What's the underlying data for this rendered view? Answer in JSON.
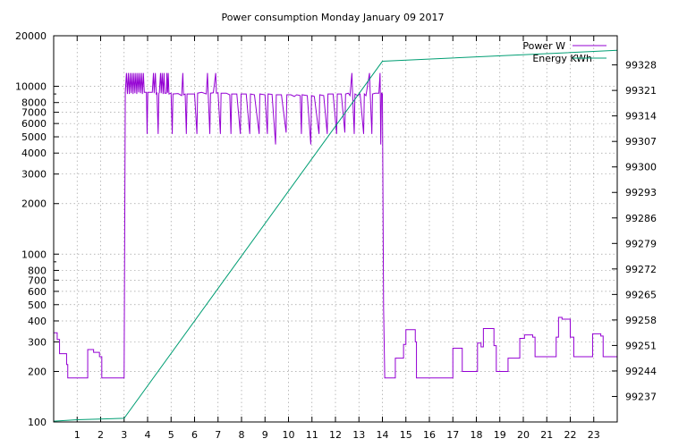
{
  "chart_data": {
    "type": "line",
    "title": "Power consumption Monday January 09 2017",
    "x_ticks": [
      1,
      2,
      3,
      4,
      5,
      6,
      7,
      8,
      9,
      10,
      11,
      12,
      13,
      14,
      15,
      16,
      17,
      18,
      19,
      20,
      21,
      22,
      23
    ],
    "xlim": [
      0,
      24
    ],
    "y_left": {
      "scale": "log",
      "range": [
        100,
        20000
      ],
      "tick_labels": [
        "100",
        "200",
        "300",
        "400",
        "500",
        "600",
        "700",
        "800",
        "1000",
        "2000",
        "3000",
        "4000",
        "5000",
        "6000",
        "7000",
        "8000",
        "10000",
        "20000"
      ]
    },
    "y_right": {
      "range": [
        99230,
        99336
      ],
      "tick_labels": [
        "99237",
        "99244",
        "99251",
        "99258",
        "99265",
        "99272",
        "99279",
        "99286",
        "99293",
        "99300",
        "99307",
        "99314",
        "99321",
        "99328"
      ]
    },
    "grid": true,
    "legend_position": "top-right",
    "series": [
      {
        "name": "Power W",
        "color": "#9400d3",
        "axis": "left",
        "points": [
          [
            0.0,
            340
          ],
          [
            0.15,
            340
          ],
          [
            0.15,
            310
          ],
          [
            0.25,
            310
          ],
          [
            0.25,
            255
          ],
          [
            0.55,
            255
          ],
          [
            0.55,
            220
          ],
          [
            0.6,
            220
          ],
          [
            0.6,
            183
          ],
          [
            1.45,
            183
          ],
          [
            1.45,
            270
          ],
          [
            1.7,
            270
          ],
          [
            1.7,
            260
          ],
          [
            1.95,
            260
          ],
          [
            1.95,
            245
          ],
          [
            2.05,
            245
          ],
          [
            2.05,
            183
          ],
          [
            3.0,
            183
          ],
          [
            3.05,
            9200
          ],
          [
            3.1,
            12000
          ],
          [
            3.14,
            9000
          ],
          [
            3.18,
            12000
          ],
          [
            3.22,
            9000
          ],
          [
            3.26,
            12000
          ],
          [
            3.3,
            9100
          ],
          [
            3.34,
            12000
          ],
          [
            3.38,
            9000
          ],
          [
            3.42,
            12000
          ],
          [
            3.46,
            9100
          ],
          [
            3.5,
            12000
          ],
          [
            3.54,
            9000
          ],
          [
            3.58,
            12000
          ],
          [
            3.62,
            9200
          ],
          [
            3.66,
            12000
          ],
          [
            3.7,
            9100
          ],
          [
            3.74,
            12000
          ],
          [
            3.78,
            9000
          ],
          [
            3.82,
            12000
          ],
          [
            3.86,
            9200
          ],
          [
            3.95,
            9200
          ],
          [
            3.98,
            5200
          ],
          [
            4.01,
            9200
          ],
          [
            4.2,
            9200
          ],
          [
            4.25,
            12000
          ],
          [
            4.28,
            9100
          ],
          [
            4.33,
            12000
          ],
          [
            4.37,
            9000
          ],
          [
            4.4,
            9100
          ],
          [
            4.45,
            5200
          ],
          [
            4.48,
            9100
          ],
          [
            4.5,
            9150
          ],
          [
            4.55,
            12000
          ],
          [
            4.58,
            9100
          ],
          [
            4.62,
            12000
          ],
          [
            4.66,
            9000
          ],
          [
            4.7,
            12000
          ],
          [
            4.73,
            9100
          ],
          [
            4.8,
            9100
          ],
          [
            4.82,
            12000
          ],
          [
            4.85,
            9150
          ],
          [
            4.88,
            12000
          ],
          [
            4.91,
            9000
          ],
          [
            5.0,
            9100
          ],
          [
            5.05,
            5200
          ],
          [
            5.08,
            9000
          ],
          [
            5.3,
            9050
          ],
          [
            5.45,
            8800
          ],
          [
            5.5,
            12000
          ],
          [
            5.53,
            8900
          ],
          [
            5.6,
            9000
          ],
          [
            5.65,
            5200
          ],
          [
            5.68,
            9000
          ],
          [
            6.0,
            9000
          ],
          [
            6.1,
            5200
          ],
          [
            6.13,
            9100
          ],
          [
            6.3,
            9200
          ],
          [
            6.5,
            9000
          ],
          [
            6.55,
            12000
          ],
          [
            6.58,
            9100
          ],
          [
            6.65,
            5200
          ],
          [
            6.68,
            9100
          ],
          [
            6.8,
            9150
          ],
          [
            6.9,
            12000
          ],
          [
            6.93,
            9100
          ],
          [
            7.0,
            9150
          ],
          [
            7.1,
            5200
          ],
          [
            7.13,
            9100
          ],
          [
            7.35,
            9100
          ],
          [
            7.5,
            8900
          ],
          [
            7.55,
            5200
          ],
          [
            7.58,
            9000
          ],
          [
            7.8,
            9000
          ],
          [
            7.95,
            5200
          ],
          [
            7.98,
            9000
          ],
          [
            8.2,
            9000
          ],
          [
            8.35,
            5200
          ],
          [
            8.38,
            9000
          ],
          [
            8.55,
            8900
          ],
          [
            8.75,
            5200
          ],
          [
            8.78,
            9000
          ],
          [
            9.0,
            8900
          ],
          [
            9.1,
            5200
          ],
          [
            9.13,
            9000
          ],
          [
            9.3,
            8950
          ],
          [
            9.45,
            4500
          ],
          [
            9.48,
            8900
          ],
          [
            9.7,
            8900
          ],
          [
            9.9,
            5300
          ],
          [
            9.93,
            8900
          ],
          [
            10.1,
            8900
          ],
          [
            10.25,
            8700
          ],
          [
            10.35,
            8900
          ],
          [
            10.5,
            8800
          ],
          [
            10.55,
            5200
          ],
          [
            10.58,
            8900
          ],
          [
            10.8,
            8800
          ],
          [
            10.95,
            4500
          ],
          [
            10.98,
            8800
          ],
          [
            11.1,
            8700
          ],
          [
            11.3,
            5200
          ],
          [
            11.33,
            8900
          ],
          [
            11.5,
            8800
          ],
          [
            11.65,
            5200
          ],
          [
            11.68,
            9000
          ],
          [
            11.9,
            9000
          ],
          [
            12.05,
            5200
          ],
          [
            12.08,
            9000
          ],
          [
            12.25,
            9000
          ],
          [
            12.4,
            5300
          ],
          [
            12.43,
            9000
          ],
          [
            12.55,
            9100
          ],
          [
            12.62,
            8800
          ],
          [
            12.7,
            12000
          ],
          [
            12.73,
            9000
          ],
          [
            12.8,
            5200
          ],
          [
            12.83,
            9000
          ],
          [
            12.95,
            8800
          ],
          [
            13.05,
            9000
          ],
          [
            13.2,
            5200
          ],
          [
            13.23,
            9000
          ],
          [
            13.3,
            8800
          ],
          [
            13.45,
            12000
          ],
          [
            13.48,
            9100
          ],
          [
            13.55,
            5200
          ],
          [
            13.58,
            9000
          ],
          [
            13.7,
            9100
          ],
          [
            13.85,
            9100
          ],
          [
            13.9,
            12000
          ],
          [
            13.93,
            4500
          ],
          [
            13.96,
            9100
          ],
          [
            14.0,
            9000
          ],
          [
            14.05,
            480
          ],
          [
            14.1,
            183
          ],
          [
            14.55,
            183
          ],
          [
            14.55,
            240
          ],
          [
            14.9,
            240
          ],
          [
            14.9,
            290
          ],
          [
            15.0,
            290
          ],
          [
            15.0,
            355
          ],
          [
            15.4,
            355
          ],
          [
            15.4,
            300
          ],
          [
            15.45,
            300
          ],
          [
            15.45,
            183
          ],
          [
            16.0,
            183
          ],
          [
            16.5,
            183
          ],
          [
            17.0,
            183
          ],
          [
            17.0,
            275
          ],
          [
            17.4,
            275
          ],
          [
            17.4,
            200
          ],
          [
            18.05,
            200
          ],
          [
            18.05,
            295
          ],
          [
            18.2,
            295
          ],
          [
            18.2,
            280
          ],
          [
            18.3,
            280
          ],
          [
            18.3,
            360
          ],
          [
            18.75,
            360
          ],
          [
            18.75,
            285
          ],
          [
            18.85,
            285
          ],
          [
            18.85,
            200
          ],
          [
            19.35,
            200
          ],
          [
            19.35,
            240
          ],
          [
            19.85,
            240
          ],
          [
            19.85,
            315
          ],
          [
            20.05,
            315
          ],
          [
            20.05,
            330
          ],
          [
            20.4,
            330
          ],
          [
            20.4,
            320
          ],
          [
            20.5,
            320
          ],
          [
            20.5,
            245
          ],
          [
            21.0,
            245
          ],
          [
            21.4,
            245
          ],
          [
            21.4,
            320
          ],
          [
            21.5,
            320
          ],
          [
            21.5,
            420
          ],
          [
            21.65,
            420
          ],
          [
            21.65,
            410
          ],
          [
            22.0,
            410
          ],
          [
            22.0,
            320
          ],
          [
            22.15,
            320
          ],
          [
            22.15,
            245
          ],
          [
            22.6,
            245
          ],
          [
            22.95,
            245
          ],
          [
            22.95,
            335
          ],
          [
            23.3,
            335
          ],
          [
            23.3,
            325
          ],
          [
            23.4,
            325
          ],
          [
            23.4,
            245
          ],
          [
            24.0,
            245
          ]
        ]
      },
      {
        "name": "Energy KWh",
        "color": "#009e73",
        "axis": "right",
        "points": [
          [
            0,
            99230.2
          ],
          [
            1,
            99230.6
          ],
          [
            3,
            99231.0
          ],
          [
            14,
            99329.0
          ],
          [
            24,
            99332.0
          ]
        ]
      }
    ]
  }
}
